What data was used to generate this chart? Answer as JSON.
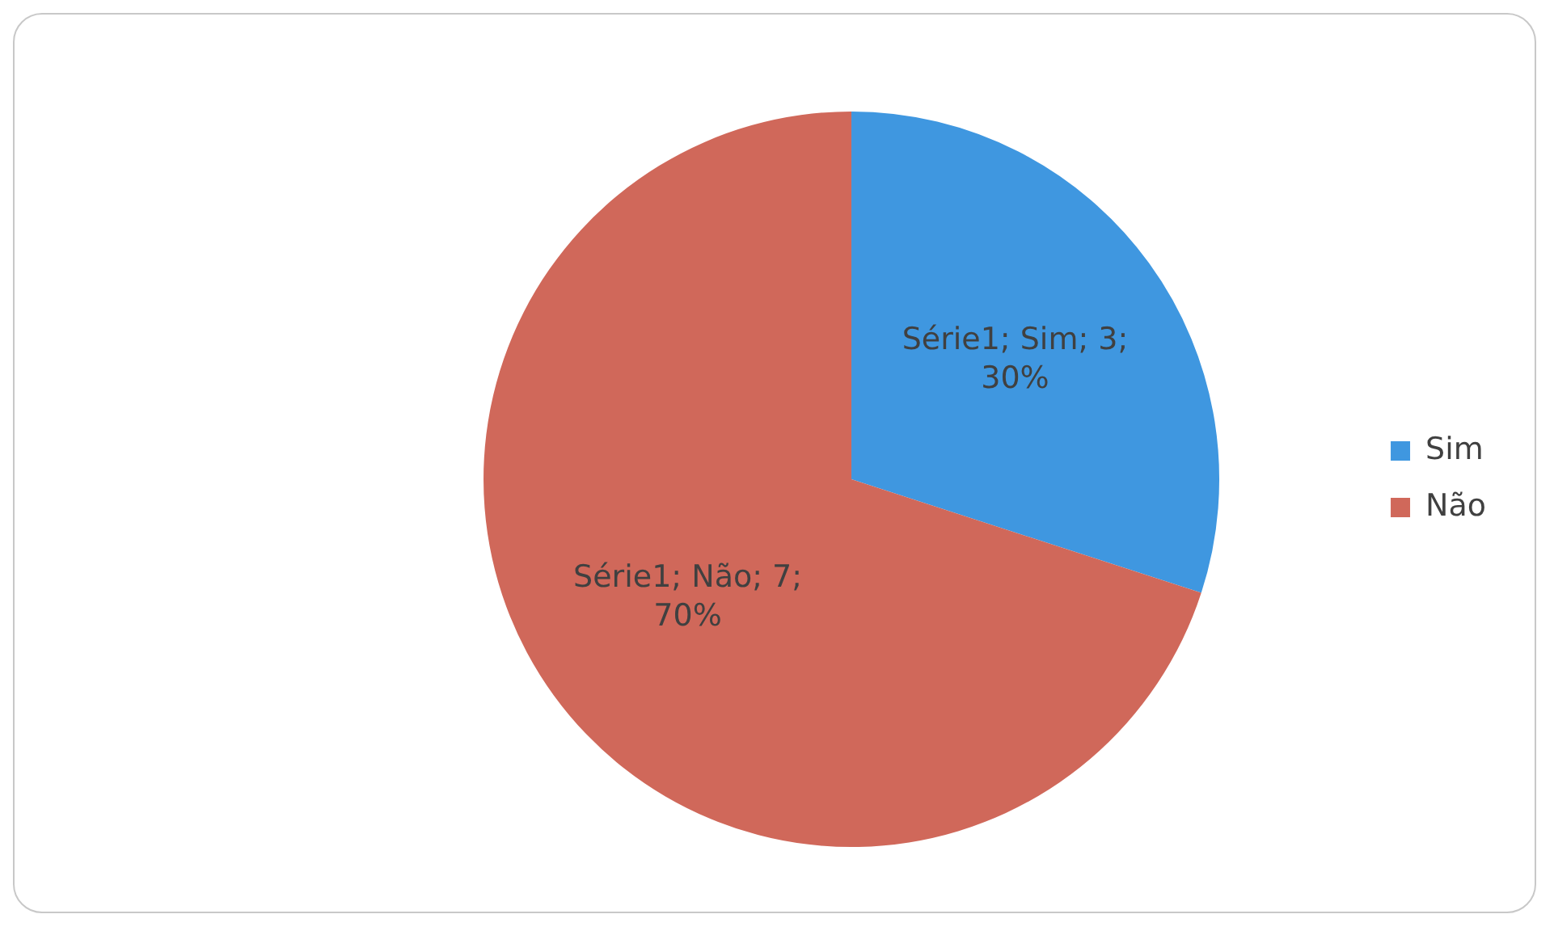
{
  "chart_data": {
    "type": "pie",
    "categories": [
      "Sim",
      "Não"
    ],
    "values": [
      30,
      70
    ],
    "colors": [
      "#3f97e0",
      "#d0685a"
    ],
    "value_labels": [
      "Série1; Sim; 3; 30%",
      "Série1; Não; 7; 70%"
    ],
    "legend": "right"
  }
}
